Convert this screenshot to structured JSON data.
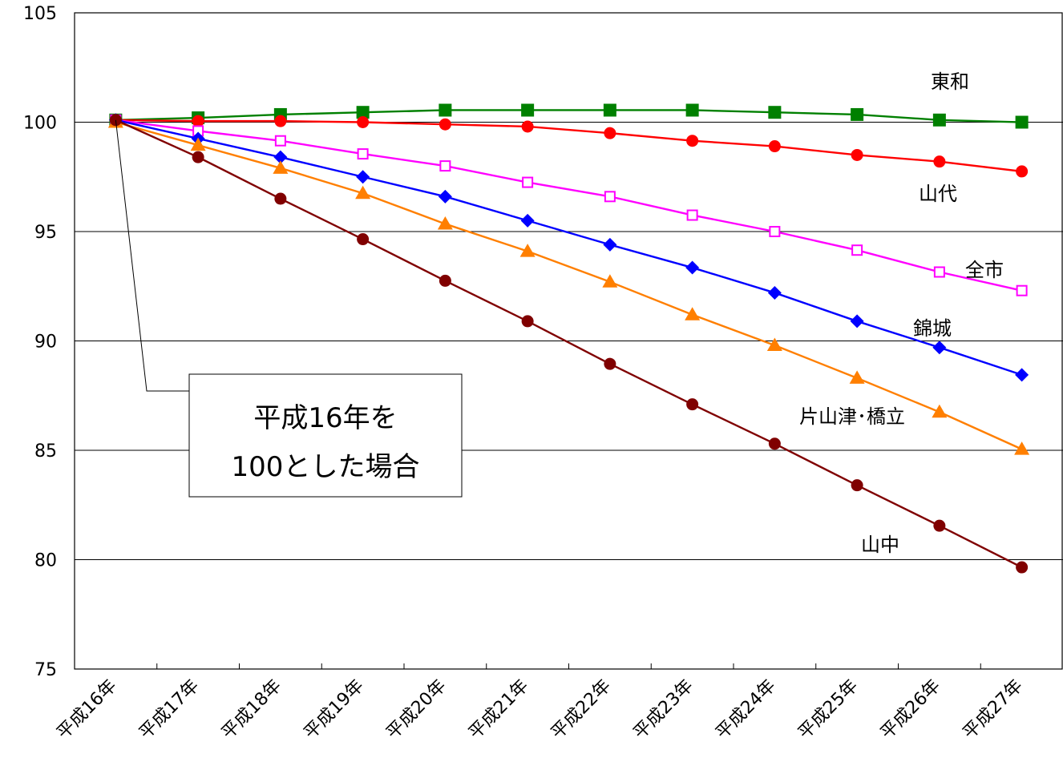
{
  "chart_data": {
    "type": "line",
    "x": [
      "平成16年",
      "平成17年",
      "平成18年",
      "平成19年",
      "平成20年",
      "平成21年",
      "平成22年",
      "平成23年",
      "平成24年",
      "平成25年",
      "平成26年",
      "平成27年"
    ],
    "ylim": [
      75,
      105
    ],
    "yticks": [
      75,
      80,
      85,
      90,
      95,
      100,
      105
    ],
    "grid": true,
    "series": [
      {
        "name": "東和",
        "color": "#008000",
        "marker": "square-filled",
        "values": [
          100.1,
          100.2,
          100.35,
          100.45,
          100.55,
          100.55,
          100.55,
          100.55,
          100.45,
          100.35,
          100.1,
          100.0
        ]
      },
      {
        "name": "山代",
        "color": "#ff0000",
        "marker": "circle",
        "values": [
          100.1,
          100.05,
          100.05,
          100.0,
          99.9,
          99.8,
          99.5,
          99.15,
          98.9,
          98.5,
          98.2,
          97.75
        ]
      },
      {
        "name": "全市",
        "color": "#ff00ff",
        "marker": "square-open",
        "values": [
          100.1,
          99.6,
          99.15,
          98.55,
          98.0,
          97.25,
          96.6,
          95.75,
          95.0,
          94.15,
          93.15,
          92.3
        ]
      },
      {
        "name": "錦城",
        "color": "#0000ff",
        "marker": "diamond",
        "values": [
          100.1,
          99.25,
          98.4,
          97.5,
          96.6,
          95.5,
          94.4,
          93.35,
          92.2,
          90.9,
          89.7,
          88.45
        ]
      },
      {
        "name": "片山津･橋立",
        "color": "#ff7f00",
        "marker": "triangle",
        "values": [
          100.0,
          98.95,
          97.9,
          96.75,
          95.35,
          94.1,
          92.7,
          91.2,
          89.8,
          88.3,
          86.75,
          85.05
        ]
      },
      {
        "name": "山中",
        "color": "#800000",
        "marker": "circle",
        "values": [
          100.1,
          98.4,
          96.5,
          94.65,
          92.75,
          90.9,
          88.95,
          87.1,
          85.3,
          83.4,
          81.55,
          79.65
        ]
      }
    ],
    "annotation": {
      "lines": [
        "平成16年を",
        "100とした場合"
      ]
    }
  }
}
